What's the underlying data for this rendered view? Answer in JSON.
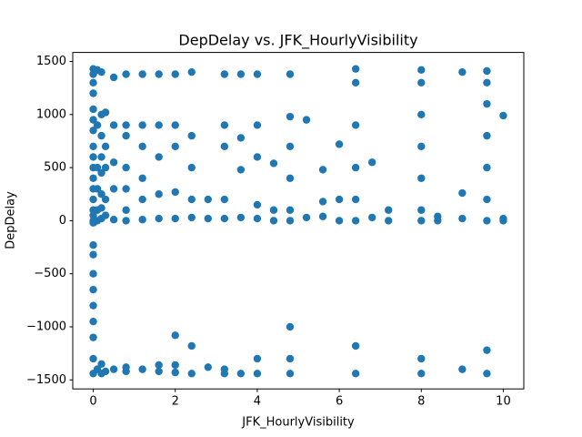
{
  "chart_data": {
    "type": "scatter",
    "title": "DepDelay vs. JFK_HourlyVisibility",
    "x_label": "JFK_HourlyVisibility",
    "y_label": "DepDelay",
    "color": "#1f77b4",
    "xlim": [
      -0.5,
      10.5
    ],
    "ylim": [
      -1585,
      1585
    ],
    "xticks": [
      0,
      2,
      4,
      6,
      8,
      10
    ],
    "yticks": [
      {
        "value": -1500,
        "label": "−1500"
      },
      {
        "value": -1000,
        "label": "−1000"
      },
      {
        "value": -500,
        "label": "−500"
      },
      0,
      500,
      1000,
      1500
    ],
    "x": [
      0,
      0,
      0,
      0,
      0,
      0,
      0,
      0,
      0,
      0,
      0,
      0,
      0,
      0,
      0,
      0,
      0,
      0,
      0,
      0,
      0,
      0,
      0,
      0,
      0,
      0,
      0.1,
      0.1,
      0.1,
      0.1,
      0.1,
      0.1,
      0.1,
      0.2,
      0.2,
      0.2,
      0.2,
      0.2,
      0.2,
      0.2,
      0.2,
      0.2,
      0.2,
      0.3,
      0.3,
      0.3,
      0.3,
      0.3,
      0.3,
      0.5,
      0.5,
      0.5,
      0.5,
      0.5,
      0.5,
      0.8,
      0.8,
      0.8,
      0.8,
      0.8,
      0.8,
      0.8,
      0.8,
      0.8,
      1.2,
      1.2,
      1.2,
      1.2,
      1.2,
      1.2,
      1.2,
      1.6,
      1.6,
      1.6,
      1.6,
      1.6,
      1.6,
      1.6,
      2,
      2,
      2,
      2,
      2,
      2,
      2,
      2,
      2.4,
      2.4,
      2.4,
      2.4,
      2.4,
      2.4,
      2.4,
      2.8,
      2.8,
      2.8,
      3.2,
      3.2,
      3.2,
      3.2,
      3.2,
      3.2,
      3.2,
      3.6,
      3.6,
      3.6,
      3.6,
      3.6,
      4,
      4,
      4,
      4,
      4,
      4,
      4,
      4.4,
      4.4,
      4.4,
      4.8,
      4.8,
      4.8,
      4.8,
      4.8,
      4.8,
      4.8,
      4.8,
      4.8,
      5.2,
      5.2,
      5.6,
      5.6,
      5.6,
      6,
      6,
      6,
      6.4,
      6.4,
      6.4,
      6.4,
      6.4,
      6.4,
      6.4,
      6.4,
      6.8,
      6.8,
      7.2,
      7.2,
      8,
      8,
      8,
      8,
      8,
      8,
      8,
      8,
      8,
      8.4,
      8.4,
      9,
      9,
      9,
      9,
      9.6,
      9.6,
      9.6,
      9.6,
      9.6,
      9.6,
      9.6,
      9.6,
      9.6,
      10,
      10,
      10
    ],
    "values": [
      1430,
      1380,
      1300,
      1200,
      1050,
      950,
      850,
      700,
      600,
      500,
      400,
      300,
      200,
      100,
      50,
      0,
      -20,
      -230,
      -320,
      -500,
      -650,
      -800,
      -950,
      -1100,
      -1300,
      -1440,
      1420,
      900,
      500,
      300,
      100,
      0,
      -1400,
      1400,
      1000,
      800,
      600,
      450,
      250,
      120,
      20,
      -1440,
      -1350,
      1020,
      700,
      500,
      200,
      50,
      -1420,
      1350,
      900,
      550,
      300,
      10,
      -1400,
      1380,
      900,
      800,
      500,
      300,
      100,
      0,
      -1380,
      -1420,
      1380,
      900,
      700,
      400,
      200,
      10,
      -1400,
      1380,
      900,
      600,
      250,
      20,
      -1360,
      -1420,
      1380,
      900,
      700,
      270,
      20,
      -1080,
      -1360,
      -1430,
      1400,
      800,
      500,
      200,
      30,
      -1180,
      -1440,
      200,
      20,
      -1380,
      1380,
      900,
      700,
      200,
      20,
      -1400,
      -1440,
      1380,
      780,
      480,
      30,
      -1440,
      1380,
      900,
      600,
      150,
      20,
      -1300,
      -1440,
      540,
      100,
      0,
      1380,
      980,
      700,
      400,
      100,
      0,
      -1000,
      -1300,
      -1440,
      950,
      30,
      480,
      180,
      40,
      720,
      200,
      0,
      1430,
      1300,
      900,
      500,
      200,
      0,
      -1180,
      -1440,
      550,
      30,
      100,
      0,
      1420,
      1300,
      1000,
      700,
      400,
      100,
      0,
      -1300,
      -1440,
      40,
      0,
      1400,
      260,
      20,
      -1400,
      1410,
      1300,
      1100,
      800,
      500,
      200,
      0,
      -1220,
      -1440,
      990,
      20,
      0
    ]
  }
}
